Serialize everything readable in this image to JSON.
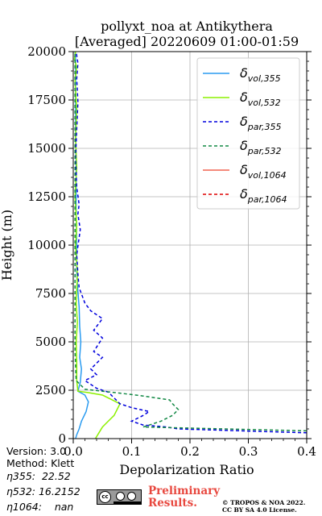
{
  "chart_data": {
    "type": "line",
    "title": "pollyxt_noa at Antikythera",
    "subtitle": "[Averaged] 20220609 01:00-01:59",
    "xlabel": "Depolarization Ratio",
    "ylabel": "Height (m)",
    "xlim": [
      0,
      0.4
    ],
    "ylim": [
      0,
      20000
    ],
    "x_ticks": [
      "0.0",
      "0.1",
      "0.2",
      "0.3",
      "0.4"
    ],
    "y_ticks": [
      "0",
      "2500",
      "5000",
      "7500",
      "10000",
      "12500",
      "15000",
      "17500",
      "20000"
    ],
    "grid": true,
    "legend_position": "top-right",
    "series": [
      {
        "name": "δvol,355",
        "name_main": "δ",
        "name_sub": "vol,355",
        "color": "#2a9bf0",
        "dash": "solid",
        "points": [
          [
            0.004,
            0
          ],
          [
            0.006,
            200
          ],
          [
            0.01,
            500
          ],
          [
            0.014,
            900
          ],
          [
            0.022,
            1400
          ],
          [
            0.026,
            1900
          ],
          [
            0.02,
            2250
          ],
          [
            0.008,
            2450
          ],
          [
            0.012,
            2900
          ],
          [
            0.014,
            3600
          ],
          [
            0.011,
            4200
          ],
          [
            0.013,
            5000
          ],
          [
            0.011,
            5800
          ],
          [
            0.01,
            6800
          ],
          [
            0.008,
            7600
          ],
          [
            0.006,
            8500
          ],
          [
            0.006,
            10000
          ],
          [
            0.005,
            12000
          ],
          [
            0.005,
            14000
          ],
          [
            0.004,
            16000
          ],
          [
            0.004,
            18000
          ],
          [
            0.004,
            19600
          ],
          [
            0.003,
            20000
          ]
        ]
      },
      {
        "name": "δvol,532",
        "name_main": "δ",
        "name_sub": "vol,532",
        "color": "#8cf000",
        "dash": "solid",
        "points": [
          [
            0.038,
            0
          ],
          [
            0.044,
            300
          ],
          [
            0.05,
            600
          ],
          [
            0.06,
            900
          ],
          [
            0.07,
            1200
          ],
          [
            0.075,
            1500
          ],
          [
            0.08,
            1800
          ],
          [
            0.06,
            2100
          ],
          [
            0.05,
            2250
          ],
          [
            0.025,
            2380
          ],
          [
            0.008,
            2450
          ],
          [
            0.006,
            3000
          ],
          [
            0.006,
            4000
          ],
          [
            0.005,
            5000
          ],
          [
            0.007,
            6000
          ],
          [
            0.005,
            7000
          ],
          [
            0.007,
            8500
          ],
          [
            0.004,
            10000
          ],
          [
            0.006,
            11000
          ],
          [
            0.003,
            12500
          ],
          [
            0.006,
            14000
          ],
          [
            0.004,
            15500
          ],
          [
            0.006,
            17000
          ],
          [
            0.003,
            18500
          ],
          [
            0.006,
            19200
          ],
          [
            0.002,
            19600
          ],
          [
            0.004,
            20000
          ]
        ]
      },
      {
        "name": "δpar,355",
        "name_main": "δ",
        "name_sub": "par,355",
        "color": "#0000dd",
        "dash": "4,3",
        "points": [
          [
            0.4,
            300
          ],
          [
            0.18,
            500
          ],
          [
            0.16,
            600
          ],
          [
            0.12,
            700
          ],
          [
            0.1,
            900
          ],
          [
            0.12,
            1200
          ],
          [
            0.13,
            1400
          ],
          [
            0.1,
            1600
          ],
          [
            0.08,
            1800
          ],
          [
            0.07,
            2100
          ],
          [
            0.06,
            2400
          ],
          [
            0.04,
            2600
          ],
          [
            0.03,
            2800
          ],
          [
            0.02,
            3000
          ],
          [
            0.04,
            3300
          ],
          [
            0.03,
            3600
          ],
          [
            0.05,
            4200
          ],
          [
            0.035,
            4500
          ],
          [
            0.05,
            5200
          ],
          [
            0.035,
            5600
          ],
          [
            0.05,
            6200
          ],
          [
            0.03,
            6600
          ],
          [
            0.02,
            7000
          ],
          [
            0.01,
            7800
          ],
          [
            0.008,
            8500
          ],
          [
            0.006,
            9500
          ],
          [
            0.012,
            10800
          ],
          [
            0.008,
            11600
          ],
          [
            0.01,
            12100
          ],
          [
            0.006,
            13000
          ],
          [
            0.004,
            14500
          ],
          [
            0.006,
            16000
          ],
          [
            0.008,
            17400
          ],
          [
            0.006,
            18600
          ],
          [
            0.008,
            19400
          ],
          [
            0.005,
            20000
          ]
        ]
      },
      {
        "name": "δpar,532",
        "name_main": "δ",
        "name_sub": "par,532",
        "color": "#118844",
        "dash": "4,3",
        "points": [
          [
            0.4,
            400
          ],
          [
            0.12,
            600
          ],
          [
            0.15,
            900
          ],
          [
            0.17,
            1200
          ],
          [
            0.18,
            1500
          ],
          [
            0.17,
            1800
          ],
          [
            0.165,
            2000
          ],
          [
            0.12,
            2200
          ],
          [
            0.08,
            2350
          ],
          [
            0.05,
            2450
          ],
          [
            0.02,
            2550
          ],
          [
            0.005,
            3000
          ],
          [
            0.003,
            4500
          ],
          [
            0.003,
            6500
          ],
          [
            0.003,
            9000
          ],
          [
            0.003,
            12000
          ],
          [
            0.003,
            15000
          ],
          [
            0.003,
            18000
          ],
          [
            0.003,
            20000
          ]
        ]
      },
      {
        "name": "δvol,1064",
        "name_main": "δ",
        "name_sub": "vol,1064",
        "color": "#f26450",
        "dash": "solid",
        "points": []
      },
      {
        "name": "δpar,1064",
        "name_main": "δ",
        "name_sub": "par,1064",
        "color": "#dd0000",
        "dash": "4,3",
        "points": []
      }
    ]
  },
  "info": {
    "version": "Version: 3.0",
    "method": "Method: Klett",
    "eta355": "η355:  22.52",
    "eta532": "η532: 16.2152",
    "eta1064": "η1064:    nan"
  },
  "footer": {
    "preliminary_line1": "Preliminary",
    "preliminary_line2": "Results.",
    "copyright_line1": "© TROPOS & NOA 2022.",
    "copyright_line2": "CC BY SA 4.0 License."
  }
}
